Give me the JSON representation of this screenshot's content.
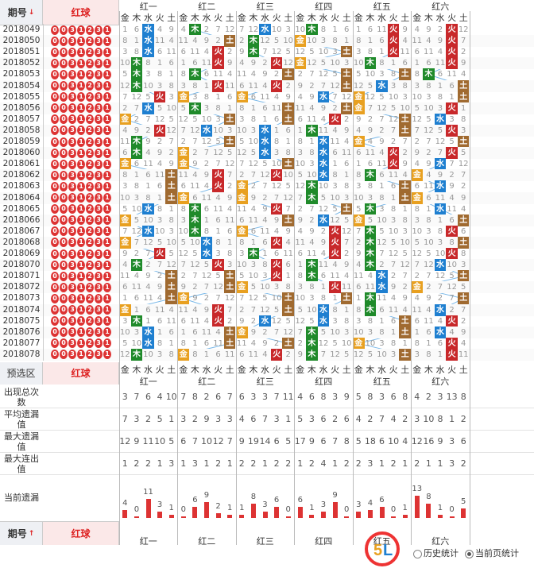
{
  "header": {
    "issue_label": "期号",
    "issue_sort_icon": "sort-down-icon",
    "red_label": "红球",
    "groups": [
      "红一",
      "红二",
      "红三",
      "红四",
      "红五",
      "红六"
    ],
    "elements": [
      "金",
      "木",
      "水",
      "火",
      "土"
    ]
  },
  "colors": {
    "金": "#e8a020",
    "木": "#1f8a2a",
    "水": "#1e7fd0",
    "火": "#c8282a",
    "土": "#a06a30"
  },
  "issues": [
    "2018049",
    "2018050",
    "2018051",
    "2018052",
    "2018053",
    "2018054",
    "2018055",
    "2018056",
    "2018057",
    "2018058",
    "2018059",
    "2018060",
    "2018061",
    "2018062",
    "2018063",
    "2018064",
    "2018065",
    "2018066",
    "2018067",
    "2018068",
    "2018069",
    "2018070",
    "2018071",
    "2018072",
    "2018073",
    "2018074",
    "2018075",
    "2018076",
    "2018077",
    "2018078"
  ],
  "hits": [
    [
      2,
      1,
      2,
      1,
      3,
      3
    ],
    [
      2,
      4,
      1,
      0,
      3,
      3
    ],
    [
      2,
      3,
      1,
      4,
      3,
      3
    ],
    [
      1,
      3,
      3,
      0,
      1,
      3
    ],
    [
      1,
      1,
      4,
      4,
      4,
      1
    ],
    [
      1,
      3,
      3,
      4,
      2,
      4
    ],
    [
      3,
      0,
      0,
      2,
      0,
      4
    ],
    [
      2,
      1,
      4,
      4,
      0,
      3
    ],
    [
      0,
      4,
      4,
      3,
      4,
      2
    ],
    [
      3,
      2,
      2,
      1,
      4,
      3
    ],
    [
      1,
      4,
      2,
      2,
      0,
      4
    ],
    [
      1,
      0,
      2,
      2,
      3,
      3
    ],
    [
      0,
      0,
      4,
      2,
      3,
      2
    ],
    [
      4,
      3,
      3,
      2,
      1,
      0
    ],
    [
      4,
      3,
      0,
      1,
      4,
      2
    ],
    [
      4,
      0,
      0,
      1,
      4,
      0
    ],
    [
      2,
      1,
      3,
      4,
      1,
      2
    ],
    [
      0,
      1,
      4,
      2,
      0,
      4
    ],
    [
      2,
      1,
      0,
      3,
      1,
      3
    ],
    [
      0,
      2,
      3,
      3,
      1,
      4
    ],
    [
      3,
      2,
      1,
      3,
      1,
      3
    ],
    [
      1,
      3,
      3,
      1,
      1,
      2
    ],
    [
      4,
      4,
      3,
      1,
      2,
      4
    ],
    [
      4,
      4,
      0,
      3,
      2,
      0
    ],
    [
      4,
      0,
      4,
      4,
      1,
      4
    ],
    [
      0,
      3,
      4,
      2,
      1,
      2
    ],
    [
      1,
      3,
      2,
      2,
      4,
      3
    ],
    [
      2,
      4,
      0,
      1,
      4,
      2
    ],
    [
      2,
      4,
      4,
      1,
      0,
      3
    ],
    [
      1,
      0,
      3,
      1,
      4,
      3
    ]
  ],
  "preselect": {
    "label": "预选区",
    "red_label": "红球"
  },
  "stats": {
    "labels": [
      "出现总次数",
      "平均遗漏值",
      "最大遗漏值",
      "最大连出值",
      "当前遗漏"
    ],
    "appear": [
      3,
      7,
      6,
      4,
      10,
      7,
      8,
      2,
      6,
      7,
      6,
      3,
      3,
      7,
      11,
      4,
      6,
      8,
      3,
      9,
      5,
      8,
      3,
      6,
      8,
      4,
      2,
      3,
      13,
      8
    ],
    "avg": [
      7,
      3,
      2,
      5,
      1,
      3,
      2,
      9,
      3,
      3,
      4,
      6,
      7,
      3,
      1,
      5,
      3,
      6,
      2,
      6,
      4,
      2,
      7,
      4,
      2,
      3,
      10,
      8,
      1,
      2
    ],
    "max_miss": [
      12,
      9,
      11,
      10,
      5,
      6,
      7,
      10,
      12,
      7,
      9,
      19,
      14,
      6,
      5,
      17,
      9,
      6,
      7,
      8,
      5,
      18,
      6,
      10,
      4,
      12,
      16,
      9,
      3,
      6
    ],
    "max_run": [
      1,
      2,
      2,
      1,
      3,
      1,
      3,
      1,
      2,
      1,
      2,
      2,
      1,
      2,
      2,
      1,
      2,
      4,
      1,
      2,
      2,
      3,
      1,
      2,
      1,
      2,
      1,
      1,
      3,
      2
    ],
    "current": [
      4,
      0,
      11,
      3,
      1,
      0,
      6,
      9,
      2,
      1,
      1,
      8,
      3,
      6,
      0,
      6,
      1,
      3,
      9,
      0,
      3,
      4,
      6,
      0,
      1,
      13,
      8,
      1,
      0,
      5
    ]
  },
  "footer": {
    "issue_label": "期号",
    "issue_sort_icon": "sort-up-icon",
    "red_label": "红球",
    "history_label": "历史统计",
    "current_label": "当前页统计"
  }
}
